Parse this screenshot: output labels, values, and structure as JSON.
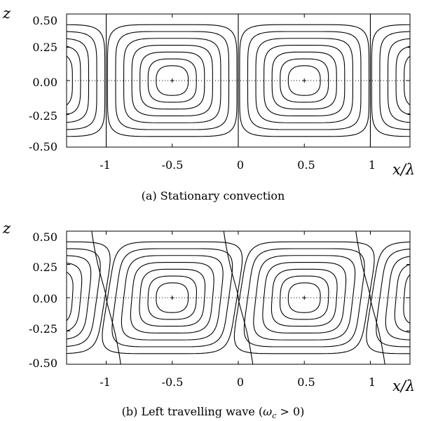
{
  "figure": {
    "panels": [
      {
        "id": "a",
        "caption": "(a)  Stationary convection",
        "ylabel": "z",
        "xlabel": "x/λ",
        "y_ticks": [
          "0.50",
          "0.25",
          "0.00",
          "-0.25",
          "-0.50"
        ],
        "x_ticks": [
          "-1",
          "-0.5",
          "0",
          "0.5",
          "1"
        ]
      },
      {
        "id": "b",
        "caption": "(b)  Left travelling wave (ωc > 0)",
        "ylabel": "z",
        "xlabel": "x/λ",
        "y_ticks": [
          "0.50",
          "0.25",
          "0.00",
          "-0.25",
          "-0.50"
        ],
        "x_ticks": [
          "-1",
          "-0.5",
          "0",
          "0.5",
          "1"
        ]
      }
    ]
  },
  "chart_data": [
    {
      "type": "contour",
      "title": "(a)  Stationary convection",
      "xlabel": "x/λ",
      "ylabel": "z",
      "xlim": [
        -1.3,
        1.3
      ],
      "ylim": [
        -0.5,
        0.5
      ],
      "xticks": [
        -1,
        -0.5,
        0,
        0.5,
        1
      ],
      "yticks": [
        0.5,
        0.25,
        0.0,
        -0.25,
        -0.5
      ],
      "cell_centers": [
        {
          "x": -0.5,
          "z": 0.0
        },
        {
          "x": 0.5,
          "z": 0.0
        }
      ],
      "contour_levels": 7,
      "cell_boundaries_x": [
        -1,
        0,
        1
      ],
      "tilted": false
    },
    {
      "type": "contour",
      "title": "(b)  Left travelling wave (ωc > 0)",
      "xlabel": "x/λ",
      "ylabel": "z",
      "xlim": [
        -1.3,
        1.3
      ],
      "ylim": [
        -0.5,
        0.5
      ],
      "xticks": [
        -1,
        -0.5,
        0,
        0.5,
        1
      ],
      "yticks": [
        0.5,
        0.25,
        0.0,
        -0.25,
        -0.5
      ],
      "cell_centers": [
        {
          "x": -0.5,
          "z": 0.0
        },
        {
          "x": 0.5,
          "z": 0.0
        }
      ],
      "contour_levels": 7,
      "cell_boundaries_x": [
        -1,
        0,
        1
      ],
      "tilted": true
    }
  ]
}
